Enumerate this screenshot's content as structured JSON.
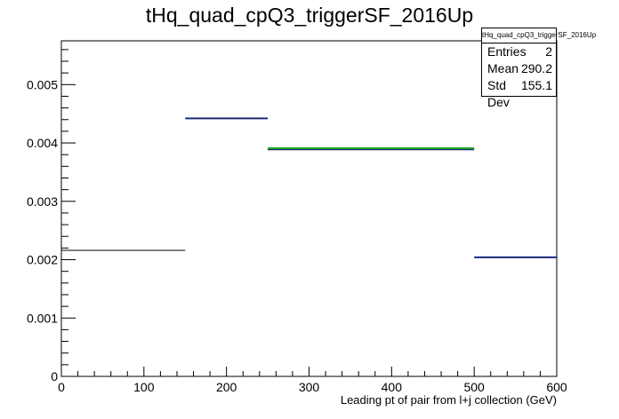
{
  "title": "tHq_quad_cpQ3_triggerSF_2016Up",
  "stats": {
    "title": "tHq_quad_cpQ3_triggerSF_2016Up",
    "rows": [
      {
        "label": "Entries",
        "value": "2"
      },
      {
        "label": "Mean",
        "value": "290.2"
      },
      {
        "label": "Std Dev",
        "value": "155.1"
      }
    ]
  },
  "chart_data": {
    "type": "histogram",
    "title": "tHq_quad_cpQ3_triggerSF_2016Up",
    "xlabel": "Leading pt of pair from l+j collection (GeV)",
    "ylabel": "",
    "xlim": [
      0,
      600
    ],
    "ylim": [
      0,
      0.00575
    ],
    "xticks": [
      0,
      100,
      200,
      300,
      400,
      500,
      600
    ],
    "xtick_labels": [
      "0",
      "100",
      "200",
      "300",
      "400",
      "500",
      "600"
    ],
    "yticks": [
      0,
      0.001,
      0.002,
      0.003,
      0.004,
      0.005
    ],
    "ytick_labels": [
      "0",
      "0.001",
      "0.002",
      "0.003",
      "0.004",
      "0.005"
    ],
    "grid": false,
    "series": [
      {
        "color": "#000000",
        "width": 1,
        "bins": [
          {
            "x0": 0,
            "x1": 150,
            "y": 0.00216
          }
        ]
      },
      {
        "color": "#1c2a7a",
        "width": 2,
        "bins": [
          {
            "x0": 150,
            "x1": 250,
            "y": 0.00442
          },
          {
            "x0": 250,
            "x1": 500,
            "y": 0.00389
          },
          {
            "x0": 500,
            "x1": 600,
            "y": 0.00204
          }
        ]
      },
      {
        "color": "#1aa51a",
        "width": 2,
        "bins": [
          {
            "x0": 250,
            "x1": 500,
            "y": 0.00391
          }
        ]
      }
    ],
    "legend_position": "top-right"
  }
}
